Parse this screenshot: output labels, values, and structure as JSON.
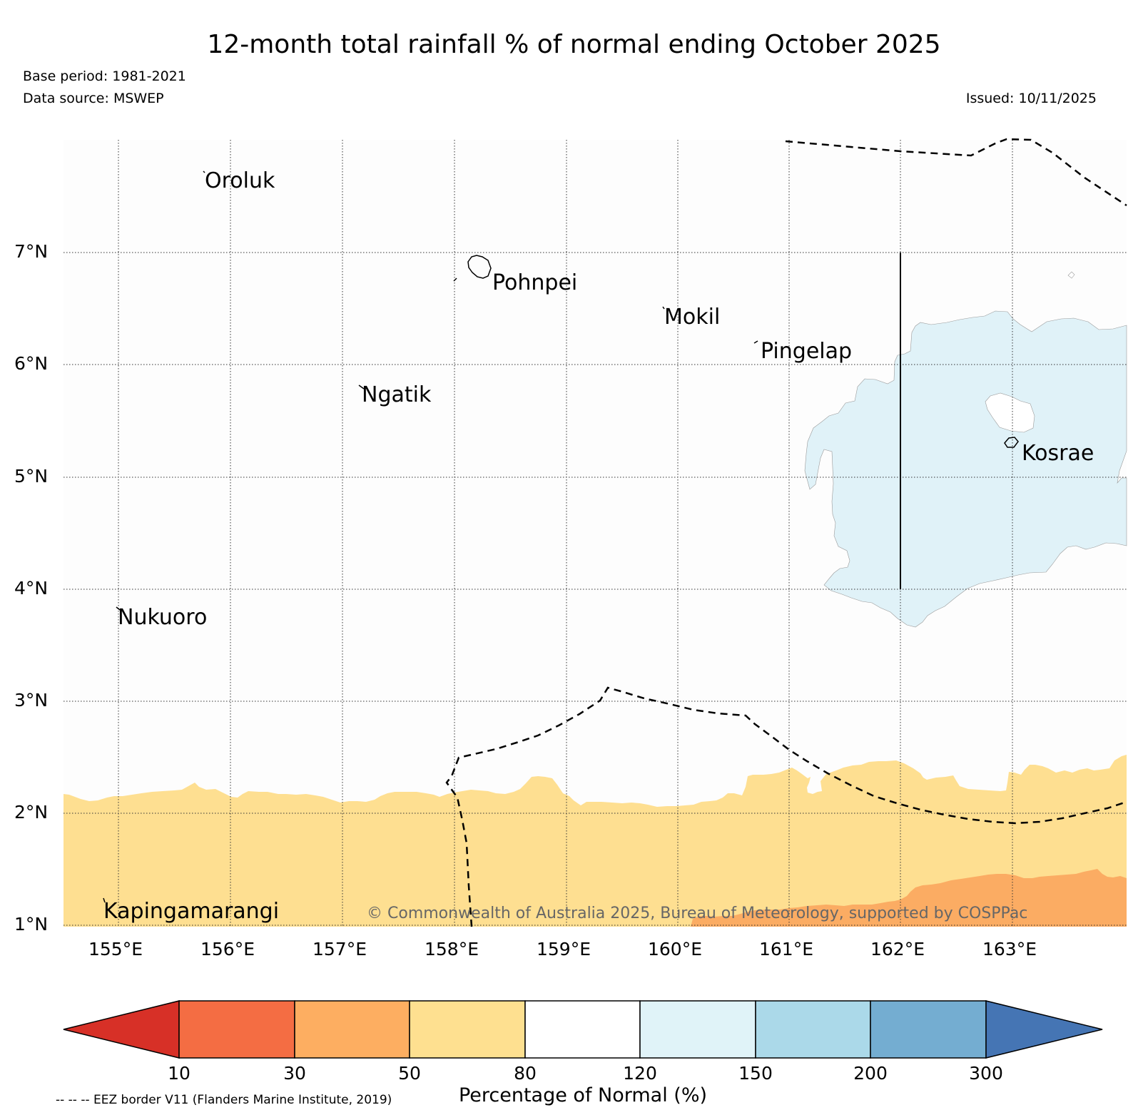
{
  "header": {
    "title": "12-month total rainfall % of normal ending October 2025",
    "base_period": "Base period: 1981-2021",
    "data_source": "Data source: MSWEP",
    "issued": "Issued: 10/11/2025"
  },
  "map": {
    "lon_ticks": [
      "155°E",
      "156°E",
      "157°E",
      "158°E",
      "159°E",
      "160°E",
      "161°E",
      "162°E",
      "163°E"
    ],
    "lat_ticks": [
      "7°N",
      "6°N",
      "5°N",
      "4°N",
      "3°N",
      "2°N",
      "1°N"
    ],
    "places": [
      "Oroluk",
      "Pohnpei",
      "Mokil",
      "Pingelap",
      "Ngatik",
      "Kosrae",
      "Nukuoro",
      "Kapingamarangi"
    ],
    "copyright": "© Commonwealth of Australia 2025, Bureau of Meteorology, supported by COSPPac",
    "category_colors": {
      "30-50": "#fbac63",
      "50-80": "#fedf91",
      "80-120": "#ffffff",
      "120-150": "#e0f2f8"
    }
  },
  "colorbar": {
    "label": "Percentage of Normal (%)",
    "ticks": [
      "10",
      "30",
      "50",
      "80",
      "120",
      "150",
      "200",
      "300"
    ],
    "colors": [
      "#d73027",
      "#f46d43",
      "#fdae61",
      "#fee090",
      "#ffffff",
      "#e0f3f8",
      "#abd9e9",
      "#74add1",
      "#4575b4"
    ]
  },
  "legend": {
    "eez_note": "-- -- -- EEZ border V11 (Flanders Marine Institute, 2019)"
  }
}
